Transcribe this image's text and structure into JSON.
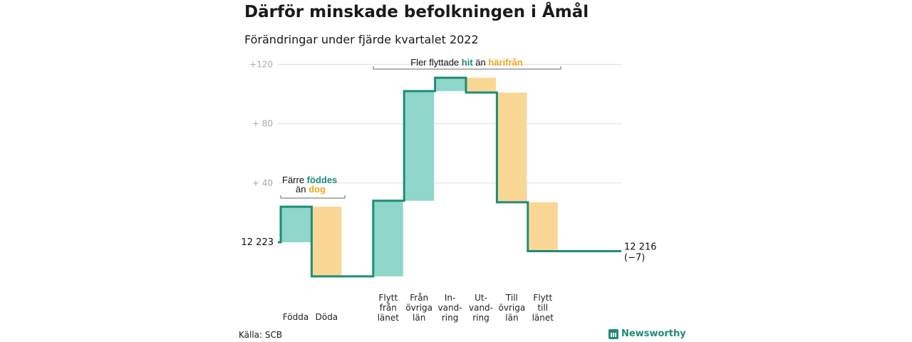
{
  "title": "Därför minskade befolkningen i Åmål",
  "subtitle": "Förändringar under fjärde kvartalet 2022",
  "source": "Källa: SCB",
  "brand": "Newsworthy",
  "colors": {
    "increase": "#8fd6cb",
    "decrease": "#fbd795",
    "line": "#1f8c79",
    "accent_orange": "#f2a81d"
  },
  "chart_data": {
    "type": "waterfall",
    "baseline_value": 12223,
    "baseline_label": "12 223",
    "end_value": 12216,
    "end_label": "12 216",
    "end_change_label": "(−7)",
    "y_axis": {
      "range": [
        -12,
        126
      ],
      "ticks": [
        40,
        80,
        120
      ],
      "tick_labels": [
        "+ 40",
        "+ 80",
        "+120"
      ],
      "grid": true
    },
    "steps": [
      {
        "label_lines": [
          "Födda"
        ],
        "change": 24
      },
      {
        "label_lines": [
          "Döda"
        ],
        "change": -47
      },
      {
        "label_lines": [
          "Flytt",
          "från",
          "länet"
        ],
        "change": 51
      },
      {
        "label_lines": [
          "Från",
          "övriga",
          "län"
        ],
        "change": 74
      },
      {
        "label_lines": [
          "In-",
          "vand-",
          "ring"
        ],
        "change": 9
      },
      {
        "label_lines": [
          "Ut-",
          "vand-",
          "ring"
        ],
        "change": -10
      },
      {
        "label_lines": [
          "Till",
          "övriga",
          "län"
        ],
        "change": -74
      },
      {
        "label_lines": [
          "Flytt",
          "till",
          "länet"
        ],
        "change": -33
      }
    ],
    "annotations": [
      {
        "parts": [
          {
            "text": "Färre ",
            "style": "plain"
          },
          {
            "text": "föddes",
            "style": "increase"
          }
        ],
        "parts2": [
          {
            "text": "än ",
            "style": "plain"
          },
          {
            "text": "dog",
            "style": "decrease"
          }
        ]
      },
      {
        "parts": [
          {
            "text": "Fler flyttade ",
            "style": "plain"
          },
          {
            "text": "hit",
            "style": "increase"
          },
          {
            "text": " än ",
            "style": "plain"
          },
          {
            "text": "härifrån",
            "style": "decrease"
          }
        ]
      }
    ]
  }
}
